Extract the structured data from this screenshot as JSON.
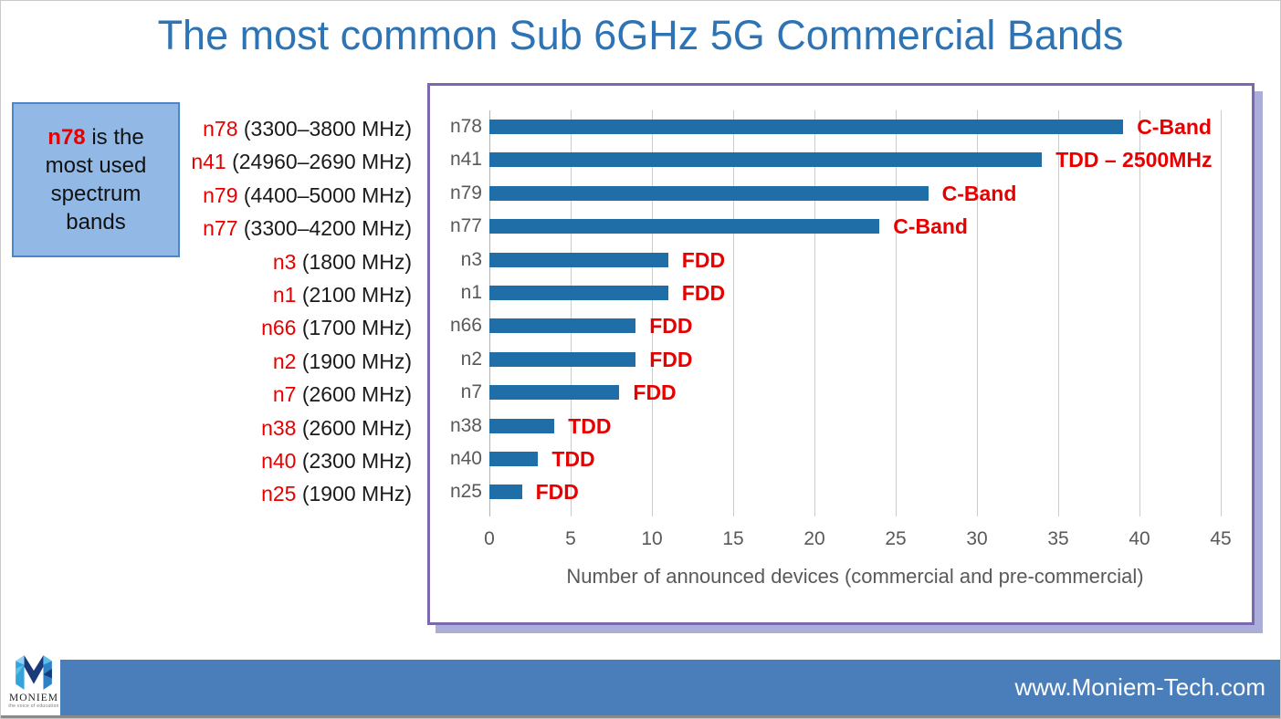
{
  "title": "The most common Sub 6GHz 5G Commercial Bands",
  "callout": {
    "highlight": "n78",
    "rest": " is the most used spectrum bands"
  },
  "band_list": [
    {
      "band": "n78",
      "freq": "(3300–3800 MHz)"
    },
    {
      "band": "n41",
      "freq": "(24960–2690 MHz)"
    },
    {
      "band": "n79",
      "freq": "(4400–5000 MHz)"
    },
    {
      "band": "n77",
      "freq": "(3300–4200 MHz)"
    },
    {
      "band": "n3",
      "freq": "(1800 MHz)"
    },
    {
      "band": "n1",
      "freq": "(2100 MHz)"
    },
    {
      "band": "n66",
      "freq": "(1700 MHz)"
    },
    {
      "band": "n2",
      "freq": "(1900 MHz)"
    },
    {
      "band": "n7",
      "freq": "(2600 MHz)"
    },
    {
      "band": "n38",
      "freq": "(2600 MHz)"
    },
    {
      "band": "n40",
      "freq": "(2300 MHz)"
    },
    {
      "band": "n25",
      "freq": "(1900 MHz)"
    }
  ],
  "chart_data": {
    "type": "bar",
    "orientation": "horizontal",
    "categories": [
      "n78",
      "n41",
      "n79",
      "n77",
      "n3",
      "n1",
      "n66",
      "n2",
      "n7",
      "n38",
      "n40",
      "n25"
    ],
    "values": [
      39,
      34,
      27,
      24,
      11,
      11,
      9,
      9,
      8,
      4,
      3,
      2
    ],
    "bar_labels": [
      "C-Band",
      "TDD – 2500MHz",
      "C-Band",
      "C-Band",
      "FDD",
      "FDD",
      "FDD",
      "FDD",
      "FDD",
      "TDD",
      "TDD",
      "FDD"
    ],
    "xlabel": "Number of announced devices (commercial and pre-commercial)",
    "xlim": [
      0,
      45
    ],
    "xticks": [
      0,
      5,
      10,
      15,
      20,
      25,
      30,
      35,
      40,
      45
    ],
    "grid": "vertical",
    "legend": "none",
    "bar_color": "#1f6ea8",
    "annotation_color": "#e80000",
    "axis_text_color": "#595959",
    "frame_color": "#7b68ae"
  },
  "footer": {
    "url": "www.Moniem-Tech.com",
    "logo_name": "MONIEM",
    "logo_tagline": "the voice of education"
  },
  "colors": {
    "title": "#2e74b5",
    "highlight_red": "#e80000",
    "callout_bg": "#92b9e6",
    "callout_border": "#4e87c9",
    "footer_bar": "#4a7ebb"
  }
}
